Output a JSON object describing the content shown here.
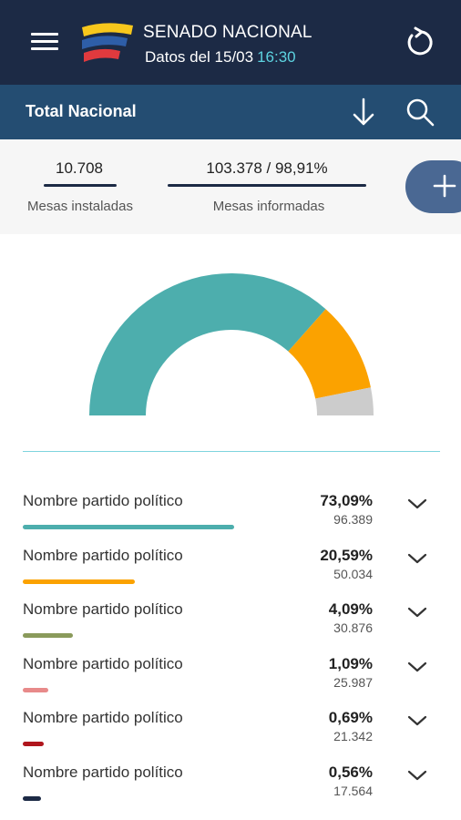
{
  "header": {
    "title": "SENADO NACIONAL",
    "subtitle": "Datos del 15/03",
    "time": "16:30",
    "logo_colors": [
      "#f7c71c",
      "#2e5ea8",
      "#e03a3e"
    ]
  },
  "subbar": {
    "title": "Total Nacional"
  },
  "stats": {
    "mesas_instaladas": {
      "value": "10.708",
      "label": "Mesas instaladas"
    },
    "mesas_informadas": {
      "value": "103.378 / 98,91%",
      "label": "Mesas informadas"
    }
  },
  "icons": {
    "menu": "menu-icon",
    "refresh": "refresh-icon",
    "download": "download-icon",
    "search": "search-icon",
    "add": "plus-icon",
    "expand": "chevron-down-icon"
  },
  "chart_data": {
    "type": "pie",
    "style": "semi-donut",
    "slices": [
      {
        "value": 73.09,
        "color": "#4daead"
      },
      {
        "value": 20.59,
        "color": "#fba200"
      },
      {
        "value": 6.32,
        "color": "#cccccc"
      }
    ]
  },
  "results": [
    {
      "name": "Nombre partido político",
      "pct": "73,09%",
      "votes": "96.389",
      "color": "#4daead",
      "share": 0.7309
    },
    {
      "name": "Nombre partido político",
      "pct": "20,59%",
      "votes": "50.034",
      "color": "#fba200",
      "share": 0.2059
    },
    {
      "name": "Nombre partido político",
      "pct": "4,09%",
      "votes": "30.876",
      "color": "#8a9a5b",
      "share": 0.0409
    },
    {
      "name": "Nombre partido político",
      "pct": "1,09%",
      "votes": "25.987",
      "color": "#e88a8a",
      "share": 0.0109
    },
    {
      "name": "Nombre partido político",
      "pct": "0,69%",
      "votes": "21.342",
      "color": "#b0161d",
      "share": 0.0069
    },
    {
      "name": "Nombre partido político",
      "pct": "0,56%",
      "votes": "17.564",
      "color": "#1c2a45",
      "share": 0.0056
    }
  ]
}
